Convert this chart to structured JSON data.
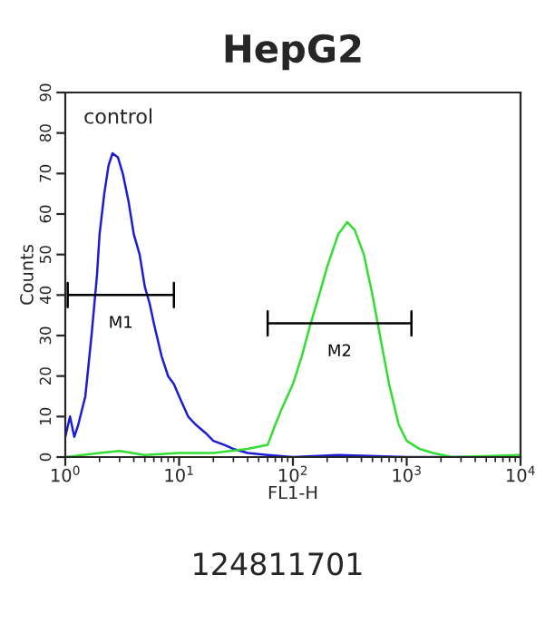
{
  "chart_data": {
    "type": "line",
    "title": "HepG2",
    "xlabel": "FL1-H",
    "ylabel": "Counts",
    "log": "x",
    "xlim": [
      1,
      10000
    ],
    "xticks": [
      {
        "value": 1,
        "label": "10$^{0}$"
      },
      {
        "value": 10,
        "label": "10$^{1}$"
      },
      {
        "value": 100,
        "label": "10$^{2}$"
      },
      {
        "value": 1000,
        "label": "10$^{3}$"
      },
      {
        "value": 10000,
        "label": "10$^{4}$"
      }
    ],
    "ylim": [
      0,
      90
    ],
    "yticks": [
      0,
      10,
      20,
      30,
      40,
      50,
      60,
      70,
      80,
      90
    ],
    "grid": false,
    "legend": false,
    "series": [
      {
        "color": "#1c1cd8",
        "x": [
          1.0,
          1.1,
          1.2,
          1.3,
          1.5,
          1.7,
          1.9,
          2.0,
          2.2,
          2.4,
          2.6,
          2.9,
          3.2,
          3.6,
          4.0,
          4.5,
          5,
          5.5,
          6,
          7,
          8,
          9,
          10,
          12,
          14,
          17,
          20,
          25,
          30,
          40,
          60,
          100,
          250,
          1000,
          10000
        ],
        "values": [
          5,
          10,
          5,
          8,
          15,
          30,
          45,
          55,
          65,
          72,
          75,
          74,
          70,
          63,
          55,
          50,
          42,
          38,
          33,
          25,
          20,
          18,
          15,
          10,
          8,
          6,
          4,
          3,
          2,
          1,
          0.5,
          0,
          0.5,
          0,
          0
        ]
      },
      {
        "color": "#33dd33",
        "x": [
          1,
          2,
          3,
          5,
          10,
          20,
          40,
          60,
          70,
          80,
          100,
          120,
          140,
          170,
          200,
          250,
          300,
          350,
          420,
          500,
          600,
          700,
          850,
          1000,
          1300,
          1700,
          2500,
          10000
        ],
        "values": [
          0,
          1,
          1.5,
          0.5,
          1,
          1,
          2,
          3,
          8,
          12,
          18,
          25,
          32,
          40,
          47,
          55,
          58,
          56,
          50,
          40,
          28,
          18,
          8,
          4,
          2,
          1,
          0,
          0.5
        ]
      },
      {
        "name": "M1",
        "color": "#000000",
        "x": [
          1.05,
          1.05,
          1.05,
          9,
          9,
          9
        ],
        "values": [
          43,
          37,
          40,
          40,
          43,
          37
        ]
      },
      {
        "name": "M2",
        "color": "#000000",
        "x": [
          60,
          60,
          60,
          1100,
          1100,
          1100
        ],
        "values": [
          36,
          30,
          33,
          33,
          36,
          30
        ]
      }
    ],
    "annotations": [
      "control",
      "124811701"
    ]
  }
}
